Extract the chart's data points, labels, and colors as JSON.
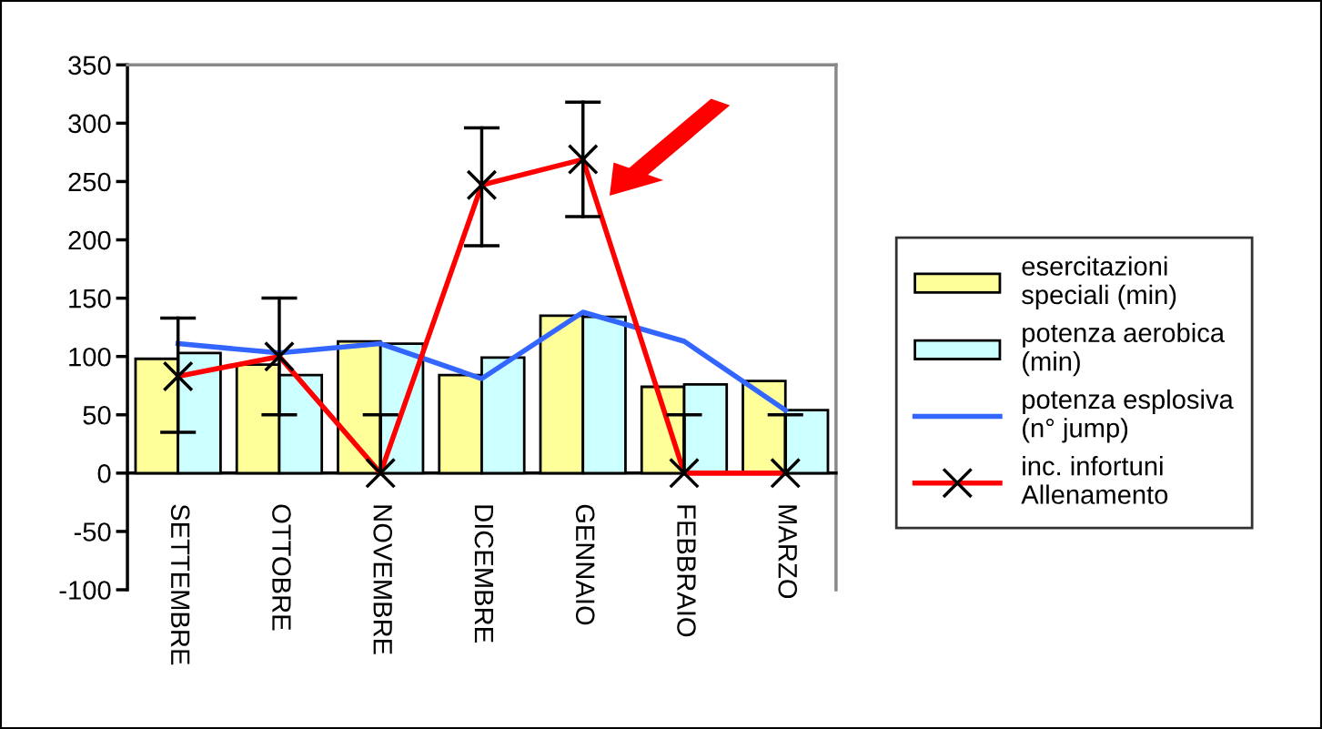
{
  "chart_data": {
    "type": "bar",
    "categories": [
      "SETTEMBRE",
      "OTTOBRE",
      "NOVEMBRE",
      "DICEMBRE",
      "GENNAIO",
      "FEBBRAIO",
      "MARZO"
    ],
    "series": [
      {
        "name": "esercitazioni\nspeciali (min)",
        "color": "#ffff99",
        "values": [
          98,
          93,
          113,
          84,
          135,
          74,
          79
        ]
      },
      {
        "name": "potenza aerobica\n(min)",
        "color": "#ccffff",
        "values": [
          103,
          84,
          111,
          99,
          134,
          76,
          54
        ]
      },
      {
        "name": "potenza esplosiva\n(n° jump)",
        "type": "line",
        "color": "#3366ff",
        "values": [
          111,
          103,
          111,
          81,
          138,
          113,
          54
        ]
      },
      {
        "name": "inc. infortuni\nAllenamento",
        "type": "line",
        "color": "#ff0000",
        "marker": "cross",
        "values": [
          83,
          100,
          0,
          247,
          269,
          0,
          0
        ],
        "errors": [
          [
            35,
            133
          ],
          [
            50,
            150
          ],
          [
            0,
            50
          ],
          [
            195,
            296
          ],
          [
            220,
            318
          ],
          [
            0,
            50
          ],
          [
            0,
            50
          ]
        ]
      }
    ],
    "ylim": [
      -100,
      350
    ],
    "yticks": [
      -100,
      -50,
      0,
      50,
      100,
      150,
      200,
      250,
      300,
      350
    ],
    "grid": false,
    "legend": "right"
  }
}
